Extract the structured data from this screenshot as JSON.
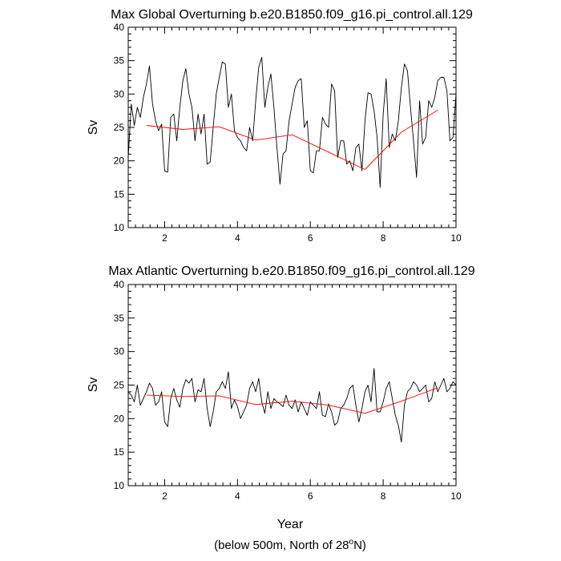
{
  "footnote": {
    "prefix": "(below 500m, North of 28",
    "degree": "o",
    "suffix": "N)"
  },
  "chart_data": [
    {
      "type": "line",
      "title": "Max Global Overturning b.e20.B1850.f09_g16.pi_control.all.129",
      "xlabel": "",
      "ylabel": "Sv",
      "xlim": [
        1,
        10
      ],
      "ylim": [
        10,
        40
      ],
      "xticks": [
        2,
        4,
        6,
        8,
        10
      ],
      "yticks": [
        10,
        15,
        20,
        25,
        30,
        35,
        40
      ],
      "grid": false,
      "series": [
        {
          "color": "#000000",
          "x": [
            1.0,
            1.083,
            1.167,
            1.25,
            1.333,
            1.417,
            1.5,
            1.583,
            1.667,
            1.75,
            1.833,
            1.917,
            2.0,
            2.083,
            2.167,
            2.25,
            2.333,
            2.417,
            2.5,
            2.583,
            2.667,
            2.75,
            2.833,
            2.917,
            3.0,
            3.083,
            3.167,
            3.25,
            3.333,
            3.417,
            3.5,
            3.583,
            3.667,
            3.75,
            3.833,
            3.917,
            4.0,
            4.083,
            4.167,
            4.25,
            4.333,
            4.417,
            4.5,
            4.583,
            4.667,
            4.75,
            4.833,
            4.917,
            5.0,
            5.083,
            5.167,
            5.25,
            5.333,
            5.417,
            5.5,
            5.583,
            5.667,
            5.75,
            5.833,
            5.917,
            6.0,
            6.083,
            6.167,
            6.25,
            6.333,
            6.417,
            6.5,
            6.583,
            6.667,
            6.75,
            6.833,
            6.917,
            7.0,
            7.083,
            7.167,
            7.25,
            7.333,
            7.417,
            7.5,
            7.583,
            7.667,
            7.75,
            7.833,
            7.917,
            8.0,
            8.083,
            8.167,
            8.25,
            8.333,
            8.417,
            8.5,
            8.583,
            8.667,
            8.75,
            8.833,
            8.917,
            9.0,
            9.083,
            9.167,
            9.25,
            9.333,
            9.417,
            9.5,
            9.583,
            9.667,
            9.75,
            9.833,
            9.917,
            10.0
          ],
          "y": [
            20.5,
            28.5,
            25.3,
            28.0,
            26.5,
            29.5,
            31.5,
            34.2,
            28.5,
            26.0,
            24.5,
            25.5,
            18.5,
            18.3,
            26.5,
            27.0,
            23.0,
            28.0,
            32.0,
            33.8,
            30.0,
            28.0,
            23.0,
            27.0,
            24.0,
            27.0,
            19.5,
            19.8,
            25.0,
            30.0,
            32.5,
            34.8,
            34.5,
            28.0,
            30.0,
            24.5,
            23.5,
            23.0,
            22.0,
            21.5,
            25.0,
            23.0,
            29.0,
            34.0,
            35.5,
            28.0,
            31.0,
            33.0,
            28.0,
            22.0,
            16.5,
            21.0,
            21.5,
            26.0,
            28.5,
            31.0,
            32.0,
            32.3,
            25.0,
            26.0,
            18.5,
            18.2,
            21.5,
            21.5,
            26.5,
            25.5,
            25.0,
            31.5,
            30.5,
            20.5,
            23.0,
            23.0,
            19.5,
            20.0,
            18.5,
            22.0,
            22.5,
            18.5,
            26.0,
            30.2,
            30.0,
            27.5,
            23.5,
            16.0,
            27.0,
            32.3,
            22.0,
            24.0,
            23.0,
            26.0,
            31.0,
            34.5,
            33.5,
            28.0,
            23.0,
            17.5,
            29.0,
            22.5,
            23.5,
            29.0,
            28.0,
            29.5,
            32.0,
            32.5,
            32.5,
            30.5,
            23.0,
            23.5,
            30.0
          ]
        },
        {
          "color": "#ff0000",
          "x": [
            1.5,
            2.5,
            3.5,
            4.5,
            5.5,
            6.5,
            7.5,
            8.5,
            9.5
          ],
          "y": [
            25.3,
            24.7,
            25.1,
            23.1,
            23.9,
            21.3,
            18.7,
            24.3,
            27.6
          ]
        }
      ]
    },
    {
      "type": "line",
      "title": "Max Atlantic Overturning b.e20.B1850.f09_g16.pi_control.all.129",
      "xlabel": "Year",
      "ylabel": "Sv",
      "xlim": [
        1,
        10
      ],
      "ylim": [
        10,
        40
      ],
      "xticks": [
        2,
        4,
        6,
        8,
        10
      ],
      "yticks": [
        10,
        15,
        20,
        25,
        30,
        35,
        40
      ],
      "grid": false,
      "series": [
        {
          "color": "#000000",
          "x": [
            1.0,
            1.083,
            1.167,
            1.25,
            1.333,
            1.417,
            1.5,
            1.583,
            1.667,
            1.75,
            1.833,
            1.917,
            2.0,
            2.083,
            2.167,
            2.25,
            2.333,
            2.417,
            2.5,
            2.583,
            2.667,
            2.75,
            2.833,
            2.917,
            3.0,
            3.083,
            3.167,
            3.25,
            3.333,
            3.417,
            3.5,
            3.583,
            3.667,
            3.75,
            3.833,
            3.917,
            4.0,
            4.083,
            4.167,
            4.25,
            4.333,
            4.417,
            4.5,
            4.583,
            4.667,
            4.75,
            4.833,
            4.917,
            5.0,
            5.083,
            5.167,
            5.25,
            5.333,
            5.417,
            5.5,
            5.583,
            5.667,
            5.75,
            5.833,
            5.917,
            6.0,
            6.083,
            6.167,
            6.25,
            6.333,
            6.417,
            6.5,
            6.583,
            6.667,
            6.75,
            6.833,
            6.917,
            7.0,
            7.083,
            7.167,
            7.25,
            7.333,
            7.417,
            7.5,
            7.583,
            7.667,
            7.75,
            7.833,
            7.917,
            8.0,
            8.083,
            8.167,
            8.25,
            8.333,
            8.417,
            8.5,
            8.583,
            8.667,
            8.75,
            8.833,
            8.917,
            9.0,
            9.083,
            9.167,
            9.25,
            9.333,
            9.417,
            9.5,
            9.583,
            9.667,
            9.75,
            9.833,
            9.917,
            10.0
          ],
          "y": [
            24.0,
            23.5,
            22.5,
            25.0,
            22.0,
            23.0,
            24.0,
            25.3,
            24.5,
            22.0,
            22.5,
            24.0,
            19.5,
            18.8,
            23.0,
            24.5,
            22.8,
            21.7,
            24.5,
            25.8,
            25.3,
            26.0,
            22.5,
            24.3,
            24.0,
            26.0,
            21.5,
            18.8,
            21.0,
            24.0,
            24.5,
            25.5,
            24.5,
            27.0,
            21.5,
            22.8,
            21.8,
            20.0,
            21.0,
            22.0,
            24.5,
            25.5,
            24.0,
            26.0,
            22.5,
            20.8,
            24.0,
            21.5,
            23.0,
            22.5,
            22.2,
            21.8,
            23.5,
            22.0,
            21.5,
            22.8,
            21.0,
            22.5,
            21.5,
            20.5,
            22.5,
            22.0,
            21.5,
            24.0,
            20.5,
            20.3,
            22.2,
            21.0,
            19.0,
            19.5,
            21.5,
            22.0,
            23.0,
            24.5,
            25.0,
            22.0,
            19.5,
            21.5,
            24.0,
            25.0,
            22.5,
            27.5,
            21.0,
            21.0,
            22.5,
            24.5,
            25.5,
            23.0,
            20.5,
            19.0,
            16.5,
            22.0,
            24.0,
            24.5,
            25.5,
            25.0,
            24.0,
            24.5,
            25.0,
            22.5,
            23.0,
            25.5,
            24.0,
            25.0,
            26.0,
            24.0,
            24.5,
            25.5,
            25.0
          ]
        },
        {
          "color": "#ff0000",
          "x": [
            1.5,
            2.5,
            3.5,
            4.5,
            5.5,
            6.5,
            7.5,
            8.5,
            9.5
          ],
          "y": [
            23.5,
            23.3,
            23.4,
            22.1,
            22.6,
            22.0,
            20.8,
            22.6,
            24.6
          ]
        }
      ]
    }
  ]
}
